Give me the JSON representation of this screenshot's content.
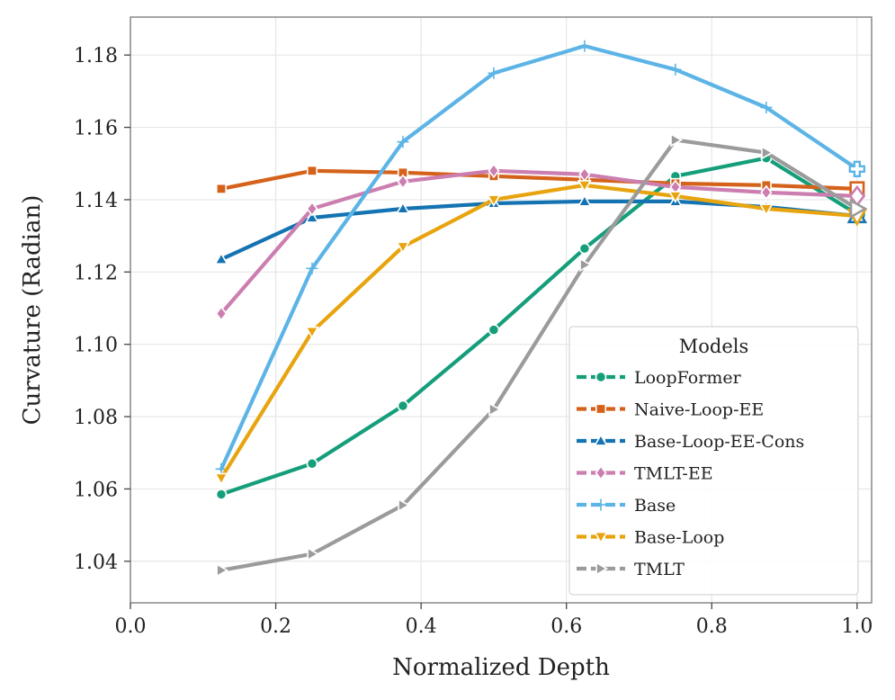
{
  "chart_data": {
    "type": "line",
    "title": "",
    "xlabel": "Normalized Depth",
    "ylabel": "Curvature (Radian)",
    "xlim": [
      0.0,
      1.0
    ],
    "ylim": [
      1.0285,
      1.1905
    ],
    "xticks": [
      0.0,
      0.2,
      0.4,
      0.6,
      0.8,
      1.0
    ],
    "xtick_labels": [
      "0.0",
      "0.2",
      "0.4",
      "0.6",
      "0.8",
      "1.0"
    ],
    "yticks": [
      1.04,
      1.06,
      1.08,
      1.1,
      1.12,
      1.14,
      1.16,
      1.18
    ],
    "ytick_labels": [
      "1.04",
      "1.06",
      "1.08",
      "1.10",
      "1.12",
      "1.14",
      "1.16",
      "1.18"
    ],
    "grid": true,
    "legend_title": "Models",
    "legend_position": "lower-right",
    "x": [
      0.125,
      0.25,
      0.375,
      0.5,
      0.625,
      0.75,
      0.875,
      1.0
    ],
    "series": [
      {
        "name": "LoopFormer",
        "color": "#159E7A",
        "marker": "circle",
        "values": [
          1.0585,
          1.067,
          1.083,
          1.104,
          1.1265,
          1.1465,
          1.1515,
          1.136
        ]
      },
      {
        "name": "Naive-Loop-EE",
        "color": "#D5621A",
        "marker": "square",
        "values": [
          1.143,
          1.148,
          1.1475,
          1.1465,
          1.1455,
          1.1445,
          1.144,
          1.143
        ]
      },
      {
        "name": "Base-Loop-EE-Cons",
        "color": "#1473B2",
        "marker": "triangle-up",
        "values": [
          1.1235,
          1.135,
          1.1375,
          1.139,
          1.1395,
          1.1395,
          1.138,
          1.1355
        ]
      },
      {
        "name": "TMLT-EE",
        "color": "#CC7EB0",
        "marker": "diamond",
        "values": [
          1.1085,
          1.1375,
          1.145,
          1.148,
          1.147,
          1.1435,
          1.142,
          1.141
        ]
      },
      {
        "name": "Base",
        "color": "#5CB4E6",
        "marker": "plus",
        "values": [
          1.0655,
          1.121,
          1.156,
          1.175,
          1.1825,
          1.176,
          1.1655,
          1.1485
        ]
      },
      {
        "name": "Base-Loop",
        "color": "#E8A40E",
        "marker": "triangle-down",
        "values": [
          1.063,
          1.1035,
          1.127,
          1.14,
          1.144,
          1.141,
          1.1375,
          1.1355
        ]
      },
      {
        "name": "TMLT",
        "color": "#9B9B9B",
        "marker": "triangle-right",
        "values": [
          1.0375,
          1.042,
          1.0555,
          1.082,
          1.122,
          1.1565,
          1.153,
          1.1375
        ]
      }
    ]
  }
}
